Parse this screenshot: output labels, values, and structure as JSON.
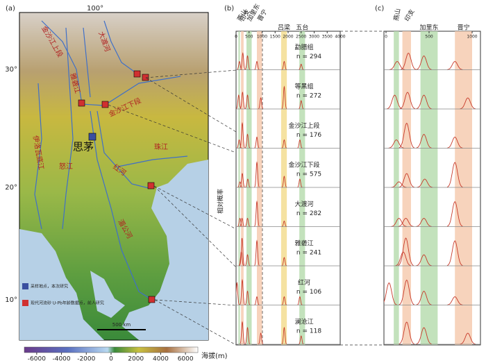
{
  "map": {
    "label": "(a)",
    "lon_label": "100°",
    "lat_labels": [
      "30°",
      "20°",
      "10°"
    ],
    "place_labels": [
      "金沙江上段",
      "大渡河",
      "雅砻江",
      "金沙江下段",
      "伊洛瓦底江",
      "怒江",
      "思茅",
      "红河",
      "珠江",
      "湄公河"
    ],
    "legend": [
      "采样地点，本次研究",
      "现代河流砂 U-Pb年龄数据点，前人研究"
    ],
    "scale_label": "500 km",
    "colorbar": {
      "title": "海拔(m)",
      "ticks": [
        -6000,
        -4000,
        -2000,
        0,
        2000,
        4000,
        6000
      ],
      "lim": [
        -7000,
        7000
      ]
    }
  },
  "bands": [
    {
      "name": "燕山",
      "range": [
        90,
        150
      ],
      "color": "#b9ddb0"
    },
    {
      "name": "印支",
      "range": [
        190,
        290
      ],
      "color": "#f6cbb0"
    },
    {
      "name": "加里东",
      "range": [
        400,
        600
      ],
      "color": "#b9ddb0"
    },
    {
      "name": "晋宁",
      "range": [
        800,
        1000
      ],
      "color": "#f6cbb0"
    },
    {
      "name": "吕梁",
      "range": [
        1730,
        1950
      ],
      "color": "#f3dd90"
    },
    {
      "name": "五台",
      "range": [
        2430,
        2650
      ],
      "color": "#b9ddb0"
    }
  ],
  "panel_b": {
    "label": "(b)",
    "xlim": [
      0,
      4000
    ],
    "xticks": [
      0,
      500,
      1000,
      1500,
      2000,
      2500,
      3000,
      3500,
      4000
    ],
    "y_label": "相对概率"
  },
  "panel_c": {
    "label": "(c)",
    "xlim": [
      0,
      1000
    ],
    "xticks": [
      0,
      500,
      1000
    ]
  },
  "samples": [
    {
      "name": "勐腊组",
      "n_label": "n = 294",
      "ages": [
        130,
        260,
        440,
        800,
        1850,
        2500
      ],
      "heights": [
        0.3,
        0.6,
        0.5,
        0.3,
        0.3,
        0.2
      ]
    },
    {
      "name": "等黑组",
      "n_label": "n = 272",
      "ages": [
        100,
        250,
        440,
        950,
        1850,
        2500
      ],
      "heights": [
        0.5,
        0.6,
        0.5,
        0.4,
        0.8,
        0.3
      ]
    },
    {
      "name": "金沙江上段",
      "n_label": "n = 176",
      "ages": [
        120,
        240,
        440,
        800,
        1850,
        2450
      ],
      "heights": [
        0.3,
        0.9,
        0.5,
        0.4,
        0.3,
        0.3
      ]
    },
    {
      "name": "金沙江下段",
      "n_label": "n = 575",
      "ages": [
        150,
        240,
        450,
        800,
        1850,
        2450
      ],
      "heights": [
        0.2,
        0.5,
        0.3,
        0.9,
        0.4,
        0.3
      ]
    },
    {
      "name": "大渡河",
      "n_label": "n = 282",
      "ages": [
        150,
        230,
        440,
        800,
        1850
      ],
      "heights": [
        0.3,
        0.3,
        0.3,
        0.9,
        0.2
      ]
    },
    {
      "name": "雅砻江",
      "n_label": "n = 241",
      "ages": [
        200,
        230,
        440,
        800,
        1850
      ],
      "heights": [
        0.5,
        1.0,
        0.4,
        0.9,
        0.3
      ]
    },
    {
      "name": "红河",
      "n_label": "n = 106",
      "ages": [
        35,
        240,
        440,
        800,
        1850,
        2450
      ],
      "heights": [
        0.8,
        0.9,
        0.5,
        0.3,
        0.3,
        0.3
      ]
    },
    {
      "name": "澜沧江",
      "n_label": "n = 118",
      "ages": [
        240,
        440,
        950,
        1850,
        2500
      ],
      "heights": [
        0.8,
        0.6,
        0.4,
        0.6,
        0.3
      ]
    }
  ]
}
